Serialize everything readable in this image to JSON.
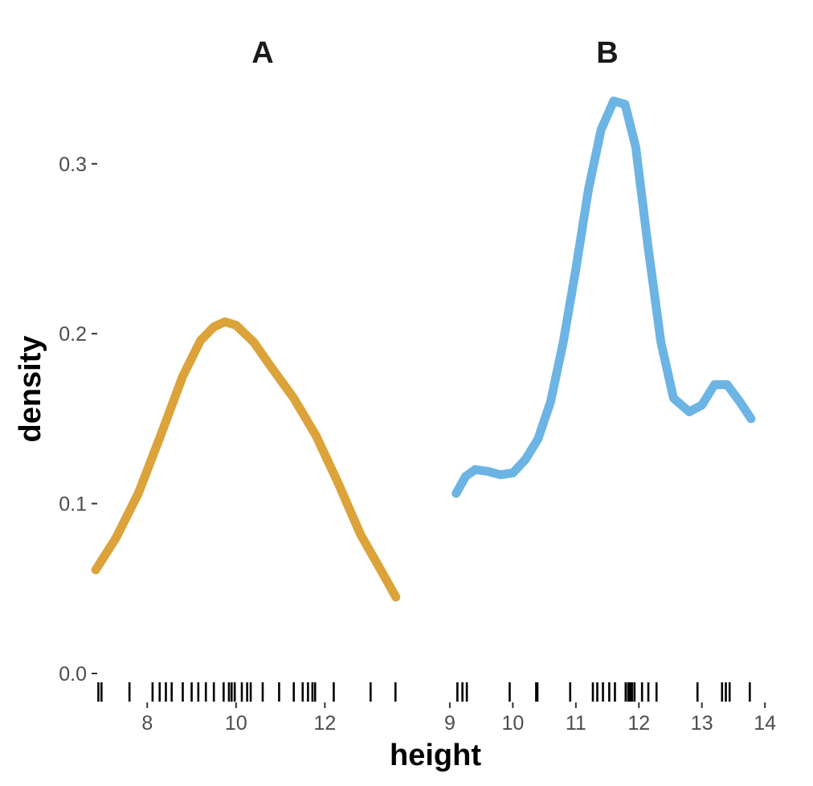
{
  "chart_data": {
    "type": "line",
    "subtype": "faceted density with rug",
    "xlabel": "height",
    "ylabel": "density",
    "ylim": [
      0,
      0.34
    ],
    "y_ticks": [
      {
        "value": 0.0,
        "label": "0.0"
      },
      {
        "value": 0.1,
        "label": "0.1"
      },
      {
        "value": 0.2,
        "label": "0.2"
      },
      {
        "value": 0.3,
        "label": "0.3"
      }
    ],
    "grid": false,
    "facets": [
      {
        "name": "A",
        "color": "#DBA33A",
        "xlim": [
          7.0,
          14.2
        ],
        "x_ticks": [
          {
            "value": 8,
            "label": "8"
          },
          {
            "value": 10,
            "label": "10"
          },
          {
            "value": 12,
            "label": "12"
          }
        ],
        "density": [
          {
            "x": 6.84,
            "y": 0.061
          },
          {
            "x": 7.3,
            "y": 0.08
          },
          {
            "x": 7.8,
            "y": 0.106
          },
          {
            "x": 8.3,
            "y": 0.14
          },
          {
            "x": 8.8,
            "y": 0.175
          },
          {
            "x": 9.2,
            "y": 0.196
          },
          {
            "x": 9.5,
            "y": 0.204
          },
          {
            "x": 9.75,
            "y": 0.207
          },
          {
            "x": 10.0,
            "y": 0.205
          },
          {
            "x": 10.4,
            "y": 0.195
          },
          {
            "x": 10.8,
            "y": 0.18
          },
          {
            "x": 11.3,
            "y": 0.162
          },
          {
            "x": 11.8,
            "y": 0.14
          },
          {
            "x": 12.3,
            "y": 0.112
          },
          {
            "x": 12.8,
            "y": 0.082
          },
          {
            "x": 13.3,
            "y": 0.059
          },
          {
            "x": 13.6,
            "y": 0.045
          }
        ],
        "rug": [
          6.9,
          6.97,
          7.6,
          8.12,
          8.28,
          8.42,
          8.55,
          8.8,
          9.0,
          9.15,
          9.32,
          9.5,
          9.72,
          9.84,
          9.9,
          9.97,
          10.13,
          10.25,
          10.33,
          10.6,
          10.97,
          11.3,
          11.5,
          11.62,
          11.72,
          11.78,
          12.2,
          13.03,
          13.59
        ]
      },
      {
        "name": "B",
        "color": "#6CB4E4",
        "xlim": [
          8.95,
          14.1
        ],
        "x_ticks": [
          {
            "value": 9,
            "label": "9"
          },
          {
            "value": 10,
            "label": "10"
          },
          {
            "value": 11,
            "label": "11"
          },
          {
            "value": 12,
            "label": "12"
          },
          {
            "value": 13,
            "label": "13"
          },
          {
            "value": 14,
            "label": "14"
          }
        ],
        "density": [
          {
            "x": 9.1,
            "y": 0.106
          },
          {
            "x": 9.25,
            "y": 0.116
          },
          {
            "x": 9.4,
            "y": 0.12
          },
          {
            "x": 9.6,
            "y": 0.119
          },
          {
            "x": 9.8,
            "y": 0.117
          },
          {
            "x": 10.0,
            "y": 0.118
          },
          {
            "x": 10.2,
            "y": 0.126
          },
          {
            "x": 10.4,
            "y": 0.138
          },
          {
            "x": 10.6,
            "y": 0.16
          },
          {
            "x": 10.8,
            "y": 0.195
          },
          {
            "x": 11.0,
            "y": 0.238
          },
          {
            "x": 11.2,
            "y": 0.285
          },
          {
            "x": 11.4,
            "y": 0.32
          },
          {
            "x": 11.6,
            "y": 0.337
          },
          {
            "x": 11.78,
            "y": 0.335
          },
          {
            "x": 11.95,
            "y": 0.31
          },
          {
            "x": 12.15,
            "y": 0.25
          },
          {
            "x": 12.35,
            "y": 0.195
          },
          {
            "x": 12.55,
            "y": 0.162
          },
          {
            "x": 12.8,
            "y": 0.154
          },
          {
            "x": 13.0,
            "y": 0.158
          },
          {
            "x": 13.2,
            "y": 0.17
          },
          {
            "x": 13.4,
            "y": 0.17
          },
          {
            "x": 13.6,
            "y": 0.16
          },
          {
            "x": 13.78,
            "y": 0.15
          }
        ],
        "rug": [
          9.12,
          9.2,
          9.27,
          9.95,
          10.37,
          10.39,
          10.91,
          11.27,
          11.34,
          11.43,
          11.53,
          11.62,
          11.79,
          11.83,
          11.86,
          11.89,
          11.93,
          12.05,
          12.15,
          12.28,
          12.93,
          13.32,
          13.38,
          13.44,
          13.76
        ]
      }
    ]
  }
}
